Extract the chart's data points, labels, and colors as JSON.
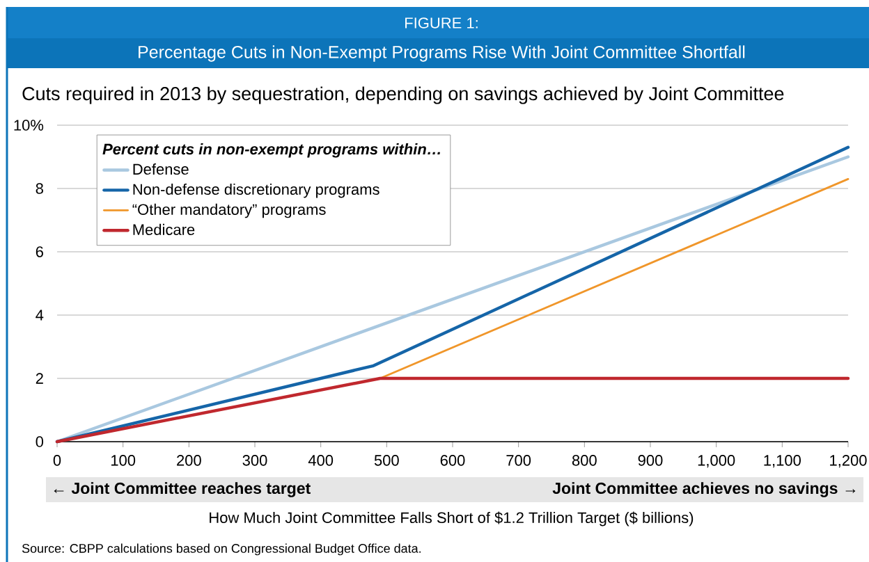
{
  "chart_data": {
    "type": "line",
    "title": "Percentage Cuts in Non-Exempt Programs Rise With Joint Committee Shortfall",
    "subtitle": "Cuts required in 2013 by sequestration, depending on savings achieved by Joint Committee",
    "xlabel": "How Much Joint Committee Falls Short of $1.2 Trillion Target ($ billions)",
    "legend_title": "Percent cuts in non-exempt programs within…",
    "annotations": [
      "FIGURE 1:",
      "← Joint Committee reaches target",
      "Joint Committee achieves no savings →",
      "Source: CBPP calculations based on Congressional Budget Office data."
    ],
    "x": [
      0,
      480,
      1200
    ],
    "series": [
      {
        "name": "Defense",
        "color": "#a9c8e0",
        "values": [
          0,
          3.6,
          9.0
        ]
      },
      {
        "name": "Non-defense discretionary programs",
        "color": "#1565a8",
        "values": [
          0,
          2.4,
          9.3
        ]
      },
      {
        "name": "“Other mandatory” programs",
        "color": "#f0962a",
        "x": [
          0,
          490,
          1200
        ],
        "values": [
          0,
          2.0,
          8.3
        ]
      },
      {
        "name": "Medicare",
        "color": "#c0282e",
        "x": [
          0,
          490,
          1200
        ],
        "values": [
          0,
          2.0,
          2.0
        ]
      }
    ],
    "xlim": [
      0,
      1200
    ],
    "ylim": [
      0,
      10
    ],
    "xticks": [
      0,
      100,
      200,
      300,
      400,
      500,
      600,
      700,
      800,
      900,
      {
        "value": 1000,
        "label": "1,000"
      },
      {
        "value": 1100,
        "label": "1,100"
      },
      {
        "value": 1200,
        "label": "1,200"
      }
    ],
    "yticks": [
      0,
      2,
      4,
      6,
      8,
      {
        "value": 10,
        "label": "10%"
      }
    ],
    "grid": "y",
    "legend": "top left",
    "marker": "none",
    "line_style": "solid"
  }
}
